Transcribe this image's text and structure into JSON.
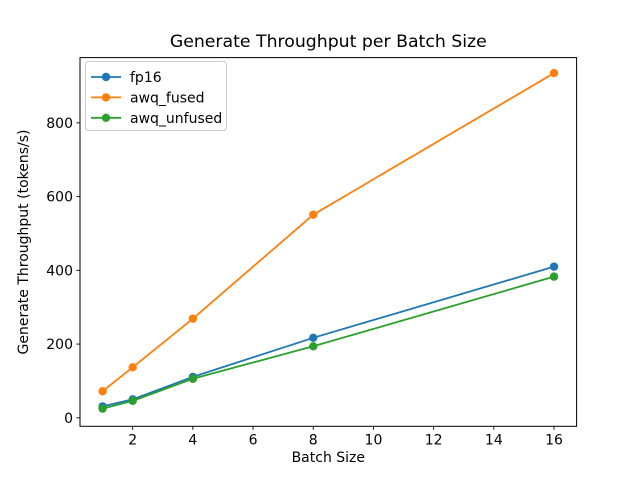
{
  "chart_data": {
    "type": "line",
    "title": "Generate Throughput per Batch Size",
    "xlabel": "Batch Size",
    "ylabel": "Generate Throughput (tokens/s)",
    "x": [
      1,
      2,
      4,
      8,
      16
    ],
    "series": [
      {
        "name": "fp16",
        "color": "#1f77b4",
        "values": [
          31,
          50,
          111,
          217,
          410
        ]
      },
      {
        "name": "awq_fused",
        "color": "#ff7f0e",
        "values": [
          72,
          137,
          269,
          551,
          935
        ]
      },
      {
        "name": "awq_unfused",
        "color": "#2ca02c",
        "values": [
          25,
          46,
          106,
          194,
          383
        ]
      }
    ],
    "xticks": [
      2,
      4,
      6,
      8,
      10,
      12,
      14,
      16
    ],
    "yticks": [
      0,
      200,
      400,
      600,
      800
    ],
    "xlim": [
      0.25,
      16.75
    ],
    "ylim": [
      -23,
      977
    ],
    "grid": false,
    "legend_position": "upper-left",
    "marker": "circle",
    "line_color_default": "#000000",
    "legend_border_color": "#cccccc",
    "background": "#ffffff"
  }
}
